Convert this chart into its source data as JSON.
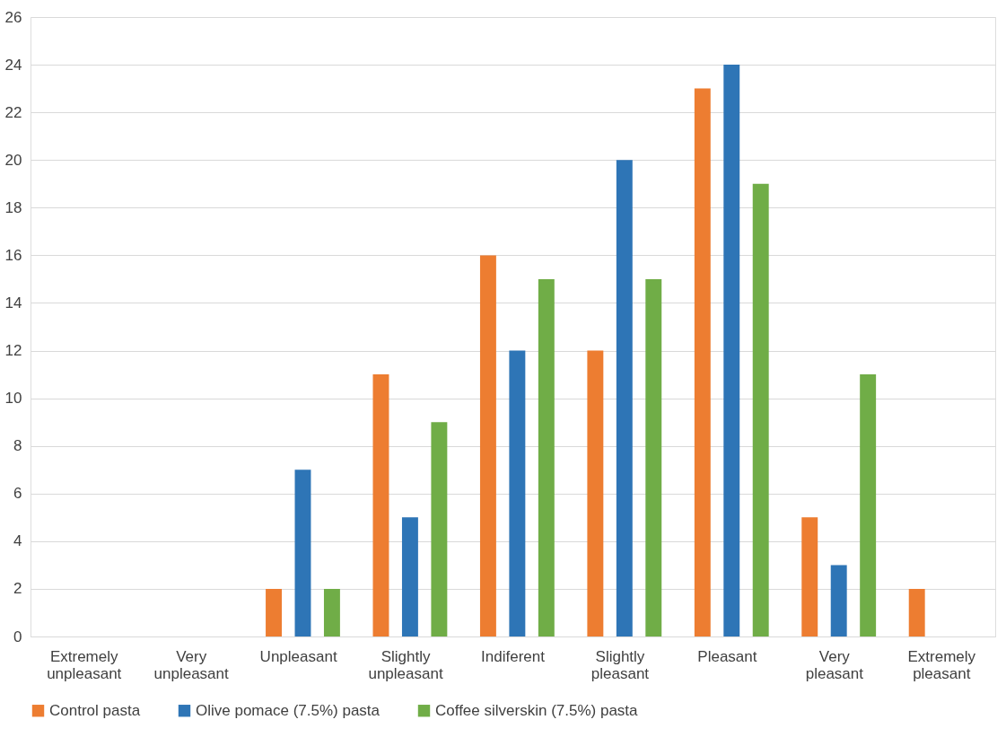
{
  "chart_data": {
    "type": "bar",
    "categories": [
      "Extremely unpleasant",
      "Very unpleasant",
      "Unpleasant",
      "Slightly unpleasant",
      "Indiferent",
      "Slightly pleasant",
      "Pleasant",
      "Very pleasant",
      "Extremely pleasant"
    ],
    "series": [
      {
        "name": "Control pasta",
        "color": "#ed7d31",
        "values": [
          0,
          0,
          2,
          11,
          16,
          12,
          23,
          5,
          2
        ]
      },
      {
        "name": "Olive pomace (7.5%) pasta",
        "color": "#2e75b6",
        "values": [
          0,
          0,
          7,
          5,
          12,
          20,
          24,
          3,
          0
        ]
      },
      {
        "name": "Coffee silverskin (7.5%) pasta",
        "color": "#70ad47",
        "values": [
          0,
          0,
          2,
          9,
          15,
          15,
          19,
          11,
          0
        ]
      }
    ],
    "ylim": [
      0,
      26
    ],
    "yticks": [
      0,
      2,
      4,
      6,
      8,
      10,
      12,
      14,
      16,
      18,
      20,
      22,
      24,
      26
    ],
    "grid": "y",
    "legend": "bottom"
  }
}
